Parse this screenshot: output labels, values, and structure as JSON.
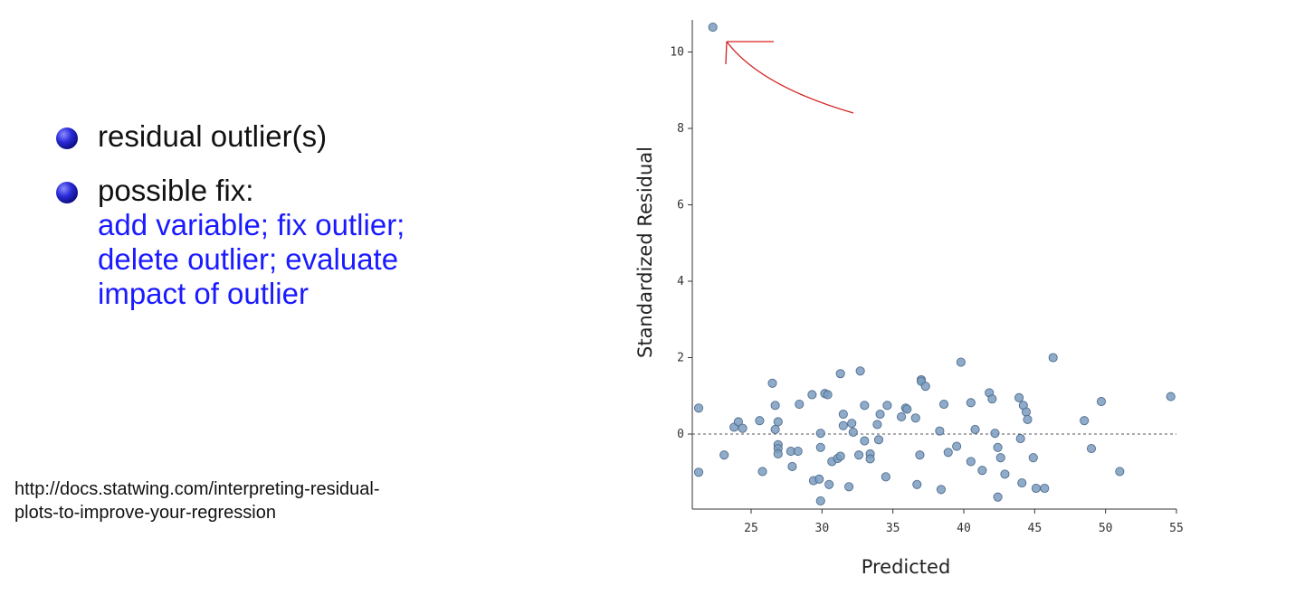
{
  "bullets": [
    {
      "text": "residual outlier(s)"
    },
    {
      "text": "possible fix:",
      "fix_lines": [
        "add variable; fix outlier;",
        "delete outlier; evaluate",
        "impact of outlier"
      ]
    }
  ],
  "source": {
    "lines": [
      "http://docs.statwing.com/interpreting-residual-",
      "plots-to-improve-your-regression"
    ]
  },
  "colors": {
    "point_fill": "#7b9cbf",
    "point_stroke": "#4f6e8e",
    "annotation": "#d62020",
    "bullet_text": "#111111",
    "fix_text": "#1a1aff"
  },
  "chart_data": {
    "type": "scatter",
    "xlabel": "Predicted",
    "ylabel": "Standardized Residual",
    "xlim": [
      21,
      55
    ],
    "ylim": [
      -1.9,
      10.9
    ],
    "xticks": [
      25,
      30,
      35,
      40,
      45,
      50,
      55
    ],
    "yticks": [
      0,
      2,
      4,
      6,
      8,
      10
    ],
    "reference_line": {
      "y": 0,
      "style": "dashed"
    },
    "grid": false,
    "annotation": "hand-drawn red arrow pointing to outlier",
    "points": [
      [
        22.3,
        10.65
      ],
      [
        21.3,
        0.68
      ],
      [
        21.3,
        -1.0
      ],
      [
        23.1,
        -0.55
      ],
      [
        23.8,
        0.18
      ],
      [
        24.1,
        0.32
      ],
      [
        24.4,
        0.15
      ],
      [
        25.6,
        0.35
      ],
      [
        25.8,
        -0.98
      ],
      [
        26.5,
        1.33
      ],
      [
        26.7,
        0.75
      ],
      [
        26.7,
        0.12
      ],
      [
        26.9,
        0.32
      ],
      [
        26.9,
        -0.28
      ],
      [
        26.9,
        -0.38
      ],
      [
        26.9,
        -0.52
      ],
      [
        27.8,
        -0.45
      ],
      [
        27.9,
        -0.85
      ],
      [
        28.3,
        -0.45
      ],
      [
        28.4,
        0.78
      ],
      [
        29.3,
        1.03
      ],
      [
        29.4,
        -1.22
      ],
      [
        29.8,
        -1.18
      ],
      [
        29.9,
        0.02
      ],
      [
        29.9,
        -0.35
      ],
      [
        29.9,
        -1.75
      ],
      [
        30.2,
        1.06
      ],
      [
        30.4,
        1.03
      ],
      [
        30.5,
        -1.32
      ],
      [
        30.7,
        -0.72
      ],
      [
        31.1,
        -0.64
      ],
      [
        31.3,
        1.58
      ],
      [
        31.3,
        -0.58
      ],
      [
        31.5,
        0.52
      ],
      [
        31.5,
        0.22
      ],
      [
        31.9,
        -1.38
      ],
      [
        32.1,
        0.28
      ],
      [
        32.2,
        0.05
      ],
      [
        32.6,
        -0.55
      ],
      [
        32.7,
        1.65
      ],
      [
        33.0,
        0.75
      ],
      [
        33.0,
        -0.18
      ],
      [
        33.4,
        -0.52
      ],
      [
        33.4,
        -0.65
      ],
      [
        33.9,
        0.25
      ],
      [
        34.0,
        -0.15
      ],
      [
        34.1,
        0.52
      ],
      [
        34.5,
        -1.12
      ],
      [
        34.6,
        0.75
      ],
      [
        35.6,
        0.45
      ],
      [
        35.9,
        0.68
      ],
      [
        36.0,
        0.65
      ],
      [
        36.6,
        0.42
      ],
      [
        36.7,
        -1.32
      ],
      [
        36.9,
        -0.55
      ],
      [
        37.0,
        1.42
      ],
      [
        37.0,
        1.38
      ],
      [
        37.3,
        1.25
      ],
      [
        38.3,
        0.08
      ],
      [
        38.4,
        -1.45
      ],
      [
        38.6,
        0.78
      ],
      [
        38.9,
        -0.48
      ],
      [
        39.5,
        -0.32
      ],
      [
        39.8,
        1.88
      ],
      [
        40.5,
        -0.72
      ],
      [
        40.5,
        0.82
      ],
      [
        40.8,
        0.12
      ],
      [
        41.3,
        -0.95
      ],
      [
        41.8,
        1.08
      ],
      [
        42.0,
        0.92
      ],
      [
        42.2,
        0.02
      ],
      [
        42.4,
        -1.65
      ],
      [
        42.4,
        -0.35
      ],
      [
        42.6,
        -0.62
      ],
      [
        42.9,
        -1.05
      ],
      [
        43.9,
        0.95
      ],
      [
        44.0,
        -0.12
      ],
      [
        44.1,
        -1.28
      ],
      [
        44.2,
        0.75
      ],
      [
        44.4,
        0.58
      ],
      [
        44.5,
        0.38
      ],
      [
        44.9,
        -0.62
      ],
      [
        45.1,
        -1.42
      ],
      [
        45.7,
        -1.42
      ],
      [
        46.3,
        2.0
      ],
      [
        48.5,
        0.35
      ],
      [
        49.0,
        -0.38
      ],
      [
        49.7,
        0.85
      ],
      [
        51.0,
        -0.98
      ],
      [
        54.6,
        0.98
      ]
    ]
  }
}
